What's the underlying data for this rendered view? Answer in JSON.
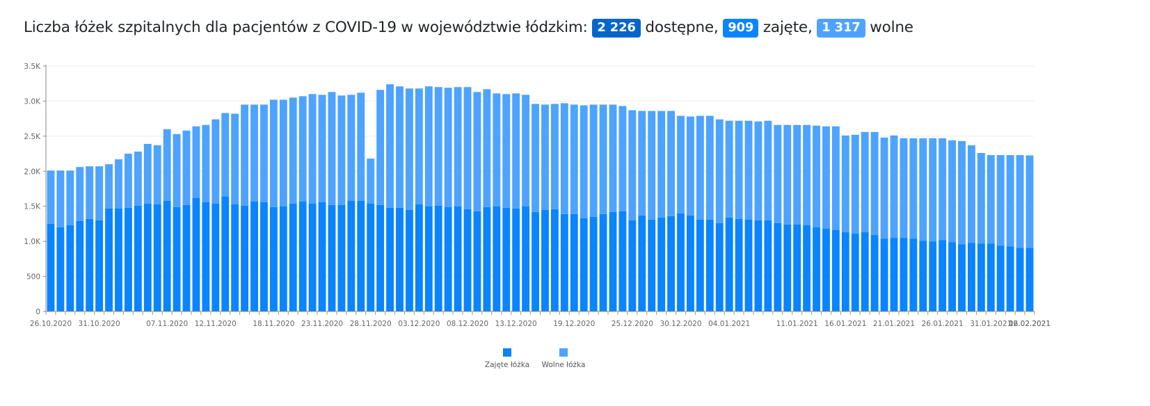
{
  "title": {
    "prefix": "Liczba łóżek szpitalnych dla pacjentów z COVID-19 w województwie łódzkim:",
    "available_value": "2 226",
    "available_label": "dostępne,",
    "occupied_value": "909",
    "occupied_label": "zajęte,",
    "free_value": "1 317",
    "free_label": "wolne"
  },
  "colors": {
    "occupied": "#0a84ff",
    "free": "#4da3ff",
    "title_available": "#0066cc"
  },
  "chart_data": {
    "type": "bar",
    "stacked": true,
    "start_date": "26.10.2020",
    "x_tick_labels": [
      "26.10.2020",
      "31.10.2020",
      "07.11.2020",
      "12.11.2020",
      "18.11.2020",
      "23.11.2020",
      "28.11.2020",
      "03.12.2020",
      "08.12.2020",
      "13.12.2020",
      "19.12.2020",
      "25.12.2020",
      "30.12.2020",
      "04.01.2021",
      "11.01.2021",
      "16.01.2021",
      "21.01.2021",
      "26.01.2021",
      "31.01.2021",
      "06.02.2021",
      "12.02.2021"
    ],
    "y_tick_labels": [
      "0",
      "500",
      "1.0K",
      "1.5K",
      "2.0K",
      "2.5K",
      "3.0K",
      "3.5K"
    ],
    "ylim": [
      0,
      3500
    ],
    "y_ticks": [
      0,
      500,
      1000,
      1500,
      2000,
      2500,
      3000,
      3500
    ],
    "legend_position": "bottom",
    "series": [
      {
        "name": "Zajęte łóżka",
        "values": [
          1250,
          1200,
          1230,
          1290,
          1320,
          1300,
          1470,
          1470,
          1480,
          1510,
          1540,
          1530,
          1580,
          1490,
          1520,
          1620,
          1560,
          1540,
          1640,
          1530,
          1510,
          1570,
          1560,
          1490,
          1500,
          1540,
          1570,
          1540,
          1560,
          1520,
          1520,
          1580,
          1580,
          1540,
          1520,
          1480,
          1480,
          1450,
          1530,
          1500,
          1510,
          1490,
          1500,
          1460,
          1430,
          1490,
          1500,
          1480,
          1470,
          1500,
          1420,
          1450,
          1460,
          1390,
          1390,
          1330,
          1350,
          1390,
          1420,
          1430,
          1300,
          1370,
          1310,
          1340,
          1360,
          1400,
          1370,
          1310,
          1310,
          1260,
          1340,
          1320,
          1310,
          1300,
          1300,
          1260,
          1240,
          1240,
          1230,
          1200,
          1180,
          1160,
          1130,
          1110,
          1130,
          1090,
          1040,
          1050,
          1050,
          1040,
          1010,
          1000,
          1020,
          990,
          960,
          980,
          970,
          970,
          940,
          930,
          910,
          909
        ]
      },
      {
        "name": "Wolne łóżka",
        "values": [
          760,
          810,
          780,
          770,
          750,
          770,
          630,
          700,
          770,
          770,
          850,
          840,
          1020,
          1040,
          1060,
          1020,
          1100,
          1200,
          1190,
          1290,
          1440,
          1380,
          1390,
          1530,
          1520,
          1510,
          1500,
          1560,
          1530,
          1610,
          1560,
          1510,
          1540,
          640,
          1640,
          1760,
          1730,
          1730,
          1650,
          1710,
          1690,
          1700,
          1700,
          1740,
          1700,
          1680,
          1610,
          1620,
          1640,
          1590,
          1540,
          1500,
          1500,
          1580,
          1560,
          1610,
          1600,
          1560,
          1530,
          1500,
          1570,
          1490,
          1550,
          1520,
          1500,
          1390,
          1410,
          1480,
          1480,
          1480,
          1380,
          1400,
          1410,
          1410,
          1420,
          1400,
          1420,
          1420,
          1430,
          1450,
          1460,
          1480,
          1380,
          1410,
          1430,
          1470,
          1440,
          1460,
          1420,
          1430,
          1460,
          1470,
          1450,
          1450,
          1470,
          1390,
          1290,
          1260,
          1290,
          1300,
          1320,
          1317
        ]
      }
    ]
  }
}
